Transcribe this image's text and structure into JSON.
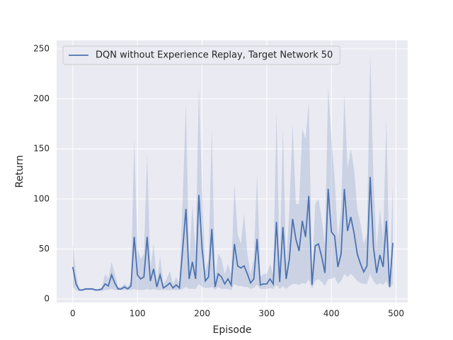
{
  "chart_data": {
    "type": "line",
    "xlabel": "Episode",
    "ylabel": "Return",
    "x": [
      0,
      5,
      10,
      15,
      20,
      25,
      30,
      35,
      40,
      45,
      50,
      55,
      60,
      65,
      70,
      75,
      80,
      85,
      90,
      95,
      100,
      105,
      110,
      115,
      120,
      125,
      130,
      135,
      140,
      145,
      150,
      155,
      160,
      165,
      170,
      175,
      180,
      185,
      190,
      195,
      200,
      205,
      210,
      215,
      220,
      225,
      230,
      235,
      240,
      245,
      250,
      255,
      260,
      265,
      270,
      275,
      280,
      285,
      290,
      295,
      300,
      305,
      310,
      315,
      320,
      325,
      330,
      335,
      340,
      345,
      350,
      355,
      360,
      365,
      370,
      375,
      380,
      385,
      390,
      395,
      400,
      405,
      410,
      415,
      420,
      425,
      430,
      435,
      440,
      445,
      450,
      455,
      460,
      465,
      470,
      475,
      480,
      485,
      490,
      495
    ],
    "series": [
      {
        "name": "DQN without Experience Replay, Target Network 50",
        "color": "#4c72b0",
        "values": [
          32,
          15,
          9,
          9,
          10,
          10,
          10,
          9,
          9,
          10,
          15,
          13,
          24,
          16,
          10,
          10,
          12,
          10,
          13,
          62,
          24,
          20,
          22,
          62,
          18,
          30,
          12,
          24,
          11,
          13,
          16,
          11,
          14,
          11,
          50,
          90,
          20,
          37,
          20,
          104,
          50,
          18,
          22,
          70,
          12,
          25,
          22,
          15,
          20,
          14,
          55,
          33,
          31,
          33,
          25,
          16,
          20,
          60,
          14,
          15,
          15,
          20,
          15,
          77,
          17,
          72,
          20,
          40,
          80,
          60,
          48,
          78,
          62,
          103,
          14,
          53,
          55,
          42,
          26,
          110,
          67,
          63,
          32,
          45,
          110,
          68,
          82,
          66,
          45,
          35,
          27,
          33,
          122,
          52,
          26,
          44,
          32,
          78,
          12,
          56
        ],
        "upper": [
          55,
          25,
          10,
          10,
          11,
          11,
          11,
          10,
          10,
          12,
          25,
          20,
          37,
          25,
          12,
          12,
          15,
          12,
          18,
          160,
          50,
          40,
          45,
          145,
          30,
          55,
          18,
          43,
          15,
          20,
          28,
          15,
          22,
          15,
          100,
          196,
          35,
          95,
          45,
          212,
          110,
          28,
          40,
          170,
          18,
          45,
          40,
          25,
          35,
          25,
          115,
          65,
          55,
          85,
          45,
          25,
          40,
          125,
          22,
          25,
          25,
          35,
          25,
          188,
          35,
          170,
          35,
          90,
          175,
          95,
          95,
          170,
          160,
          197,
          25,
          95,
          100,
          80,
          55,
          212,
          160,
          120,
          60,
          90,
          205,
          130,
          150,
          130,
          90,
          75,
          55,
          65,
          246,
          120,
          50,
          90,
          60,
          180,
          20,
          115
        ],
        "lower": [
          12,
          9,
          8,
          8,
          9,
          9,
          9,
          8,
          8,
          8,
          9,
          9,
          10,
          9,
          9,
          9,
          9,
          9,
          9,
          10,
          9,
          9,
          9,
          10,
          9,
          10,
          9,
          9,
          9,
          9,
          9,
          9,
          9,
          9,
          10,
          12,
          10,
          10,
          10,
          15,
          12,
          11,
          11,
          12,
          9,
          12,
          10,
          10,
          10,
          9,
          15,
          13,
          13,
          12,
          12,
          10,
          11,
          14,
          10,
          10,
          10,
          11,
          10,
          14,
          10,
          13,
          10,
          13,
          15,
          15,
          14,
          16,
          15,
          20,
          10,
          18,
          20,
          17,
          13,
          20,
          20,
          22,
          15,
          18,
          25,
          22,
          25,
          22,
          18,
          16,
          15,
          15,
          25,
          18,
          14,
          16,
          14,
          18,
          10,
          15
        ]
      }
    ],
    "xlim": [
      -25,
      518
    ],
    "ylim": [
      -3.5,
      258.5
    ],
    "xticks": [
      0,
      100,
      200,
      300,
      400,
      500
    ],
    "yticks": [
      0,
      50,
      100,
      150,
      200,
      250
    ],
    "grid": true,
    "legend": "upper left"
  }
}
